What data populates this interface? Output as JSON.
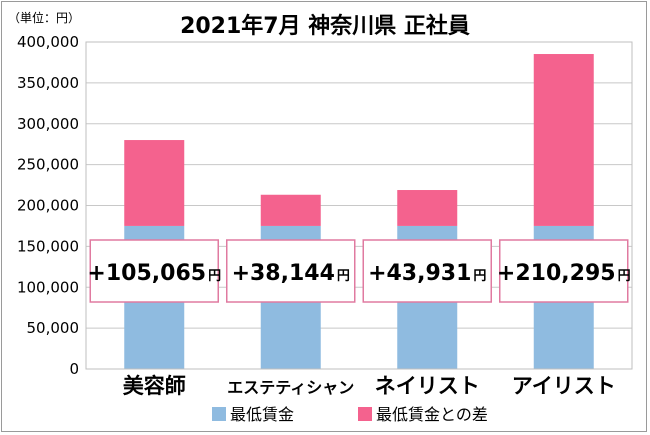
{
  "chart_data": {
    "type": "bar",
    "stacked": true,
    "title": "2021年7月 神奈川県 正社員",
    "unit_label": "（単位：円）",
    "categories": [
      "美容師",
      "エステティシャン",
      "ネイリスト",
      "アイリスト"
    ],
    "series": [
      {
        "name": "最低賃金",
        "color": "#8fbbe0",
        "values": [
          175000,
          175000,
          175000,
          175000
        ]
      },
      {
        "name": "最低賃金との差",
        "color": "#f4628e",
        "values": [
          105065,
          38144,
          43931,
          210295
        ]
      }
    ],
    "callouts": [
      {
        "value": "+105,065",
        "unit": "円"
      },
      {
        "value": "+38,144",
        "unit": "円"
      },
      {
        "value": "+43,931",
        "unit": "円"
      },
      {
        "value": "+210,295",
        "unit": "円"
      }
    ],
    "ylim": [
      0,
      400000
    ],
    "yticks": [
      "0",
      "50,000",
      "100,000",
      "150,000",
      "200,000",
      "250,000",
      "300,000",
      "350,000",
      "400,000"
    ],
    "grid": true,
    "legend_position": "bottom"
  }
}
